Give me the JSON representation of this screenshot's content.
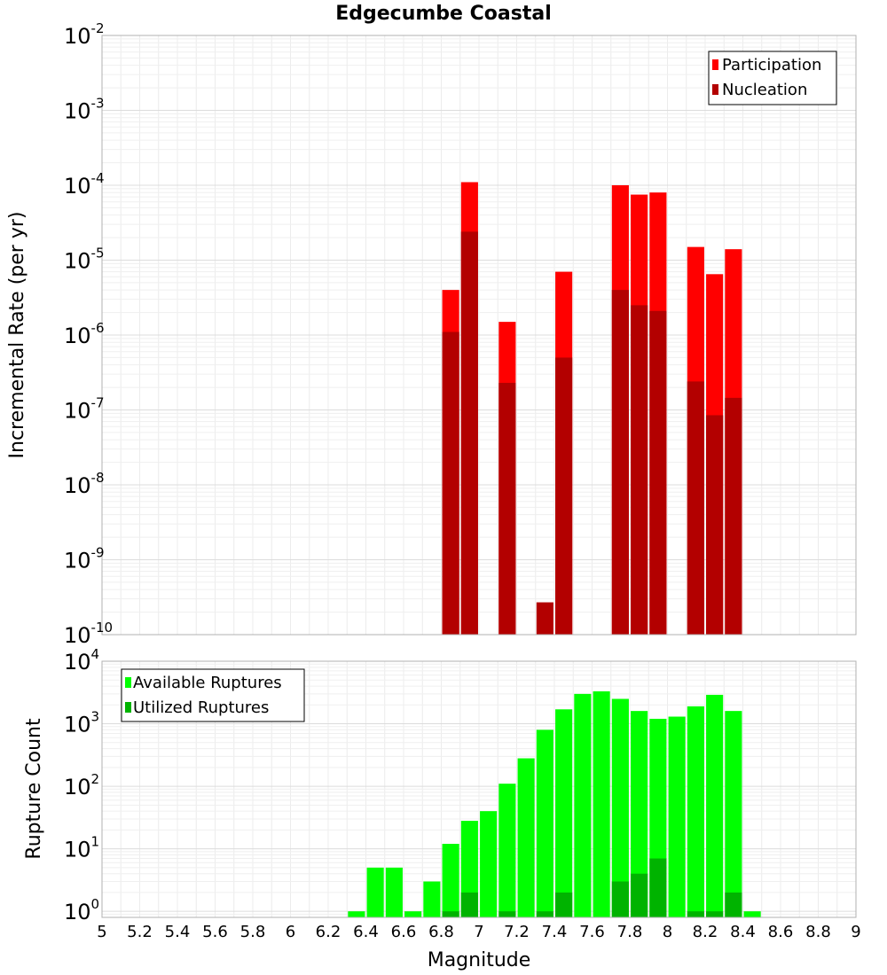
{
  "chart_data": [
    {
      "type": "bar",
      "title": "Edgecumbe Coastal",
      "xlabel": "",
      "ylabel": "Incremental Rate (per yr)",
      "yscale": "log",
      "ylim": [
        1e-10,
        0.01
      ],
      "xlim": [
        5,
        9
      ],
      "grid": true,
      "legend_position": "top-right",
      "bar_width": 0.09,
      "series": [
        {
          "name": "Participation",
          "color": "#ff0000",
          "x": [
            6.85,
            6.95,
            7.15,
            7.45,
            7.75,
            7.85,
            7.95,
            8.15,
            8.25,
            8.35
          ],
          "values": [
            4e-06,
            0.00011,
            1.5e-06,
            7e-06,
            0.0001,
            7.5e-05,
            8e-05,
            1.5e-05,
            6.5e-06,
            1.4e-05
          ]
        },
        {
          "name": "Nucleation",
          "color": "#b30000",
          "x": [
            6.85,
            6.95,
            7.15,
            7.35,
            7.45,
            7.75,
            7.85,
            7.95,
            8.15,
            8.25,
            8.35
          ],
          "values": [
            1.1e-06,
            2.4e-05,
            2.3e-07,
            2.7e-10,
            5e-07,
            4e-06,
            2.5e-06,
            2.1e-06,
            2.4e-07,
            8.5e-08,
            1.45e-07
          ]
        }
      ]
    },
    {
      "type": "bar",
      "title": "",
      "xlabel": "Magnitude",
      "ylabel": "Rupture Count",
      "yscale": "log",
      "ylim": [
        0.8,
        10000
      ],
      "xlim": [
        5,
        9
      ],
      "grid": true,
      "legend_position": "top-left",
      "bar_width": 0.09,
      "xticks": [
        "5",
        "5.2",
        "5.4",
        "5.6",
        "5.8",
        "6",
        "6.2",
        "6.4",
        "6.6",
        "6.8",
        "7",
        "7.2",
        "7.4",
        "7.6",
        "7.8",
        "8",
        "8.2",
        "8.4",
        "8.6",
        "8.8",
        "9"
      ],
      "series": [
        {
          "name": "Available Ruptures",
          "color": "#00ff00",
          "x": [
            6.35,
            6.45,
            6.55,
            6.65,
            6.75,
            6.85,
            6.95,
            7.05,
            7.15,
            7.25,
            7.35,
            7.45,
            7.55,
            7.65,
            7.75,
            7.85,
            7.95,
            8.05,
            8.15,
            8.25,
            8.35,
            8.45
          ],
          "values": [
            1,
            5,
            5,
            1,
            3,
            12,
            28,
            40,
            110,
            280,
            800,
            1700,
            3000,
            3300,
            2500,
            1600,
            1200,
            1300,
            1900,
            2900,
            1600,
            1
          ]
        },
        {
          "name": "Utilized Ruptures",
          "color": "#00b300",
          "x": [
            6.85,
            6.95,
            7.15,
            7.35,
            7.45,
            7.75,
            7.85,
            7.95,
            8.15,
            8.25,
            8.35
          ],
          "values": [
            1,
            2,
            1,
            1,
            2,
            3,
            4,
            7,
            1,
            1,
            2
          ]
        }
      ]
    }
  ],
  "x_major_ticks": [
    5,
    5.2,
    5.4,
    5.6,
    5.8,
    6,
    6.2,
    6.4,
    6.6,
    6.8,
    7,
    7.2,
    7.4,
    7.6,
    7.8,
    8,
    8.2,
    8.4,
    8.6,
    8.8,
    9
  ],
  "top_y_exponents": [
    -10,
    -9,
    -8,
    -7,
    -6,
    -5,
    -4,
    -3,
    -2
  ],
  "bottom_y_exponents": [
    0,
    1,
    2,
    3,
    4
  ]
}
